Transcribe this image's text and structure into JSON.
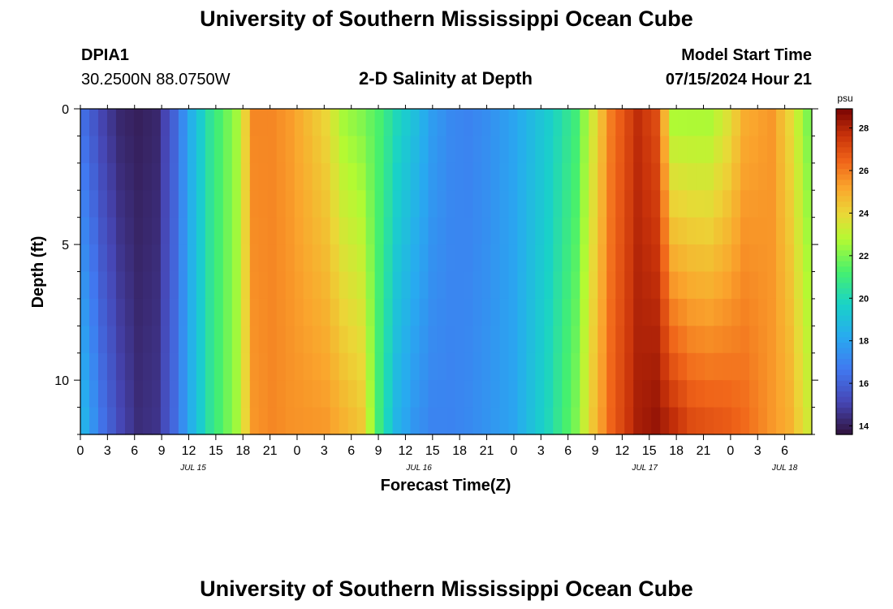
{
  "header": {
    "title": "University of Southern Mississippi Ocean Cube",
    "station_id": "DPIA1",
    "station_coords": "30.2500N  88.0750W",
    "subtitle": "2-D Salinity at Depth",
    "model_label": "Model Start Time",
    "model_time": "07/15/2024 Hour 21"
  },
  "footer": {
    "title": "University of Southern Mississippi Ocean Cube"
  },
  "colors": {
    "frame": "#000000",
    "background": "#ffffff"
  },
  "chart_data": {
    "type": "heatmap",
    "title": "2-D Salinity at Depth",
    "xlabel": "Forecast Time(Z)",
    "ylabel": "Depth (ft)",
    "x_hours_range": [
      0,
      81
    ],
    "y_depth_range": [
      0,
      12
    ],
    "x_tick_labels": [
      "0",
      "3",
      "6",
      "9",
      "12",
      "15",
      "18",
      "21",
      "0",
      "3",
      "6",
      "9",
      "12",
      "15",
      "18",
      "21",
      "0",
      "3",
      "6",
      "9",
      "12",
      "15",
      "18",
      "21",
      "0",
      "3",
      "6"
    ],
    "y_tick_labels": [
      "0",
      "5",
      "10"
    ],
    "y_tick_values": [
      0,
      5,
      10
    ],
    "date_labels": [
      {
        "text": "JUL 15",
        "hour": 12.5
      },
      {
        "text": "JUL 16",
        "hour": 37.5
      },
      {
        "text": "JUL 17",
        "hour": 62.5
      },
      {
        "text": "JUL 18",
        "hour": 78
      }
    ],
    "colorbar": {
      "unit": "psu",
      "min": 13.6,
      "max": 28.9,
      "tick_labels": [
        "14",
        "16",
        "18",
        "20",
        "22",
        "24",
        "26",
        "28"
      ],
      "tick_values": [
        14,
        16,
        18,
        20,
        22,
        24,
        26,
        28
      ]
    },
    "depth_levels_ft": [
      0,
      1,
      2,
      3,
      4,
      5,
      6,
      7,
      8,
      9,
      10,
      11,
      12
    ],
    "time_keys_hours": [
      0,
      2,
      4,
      6,
      8,
      10,
      12,
      14,
      17,
      19,
      21,
      23,
      27,
      29,
      31,
      33,
      35,
      37,
      39,
      41,
      43,
      45,
      48,
      52,
      55,
      57,
      59,
      62,
      64,
      66,
      68,
      70,
      72,
      74,
      77,
      79,
      81
    ],
    "surface_salinity_psu": [
      16.2,
      15.0,
      14.2,
      14.0,
      14.2,
      16.0,
      18.5,
      20.5,
      22.5,
      25.8,
      25.8,
      25.4,
      24.0,
      22.5,
      22.0,
      21.3,
      20.0,
      19.0,
      17.8,
      17.2,
      17.0,
      17.3,
      18.0,
      19.5,
      21.0,
      23.5,
      26.0,
      27.8,
      27.0,
      22.5,
      22.5,
      22.5,
      23.5,
      25.0,
      25.5,
      24.0,
      22.0
    ],
    "bottom_salinity_psu": [
      18.5,
      16.5,
      15.2,
      14.4,
      14.6,
      16.2,
      18.5,
      20.5,
      22.5,
      25.5,
      25.8,
      25.6,
      25.5,
      25.0,
      24.5,
      21.0,
      18.5,
      17.5,
      17.0,
      17.0,
      17.2,
      17.5,
      18.0,
      20.0,
      22.0,
      24.5,
      26.5,
      28.2,
      28.5,
      28.0,
      27.2,
      27.0,
      26.8,
      26.4,
      25.5,
      25.0,
      23.5
    ]
  }
}
